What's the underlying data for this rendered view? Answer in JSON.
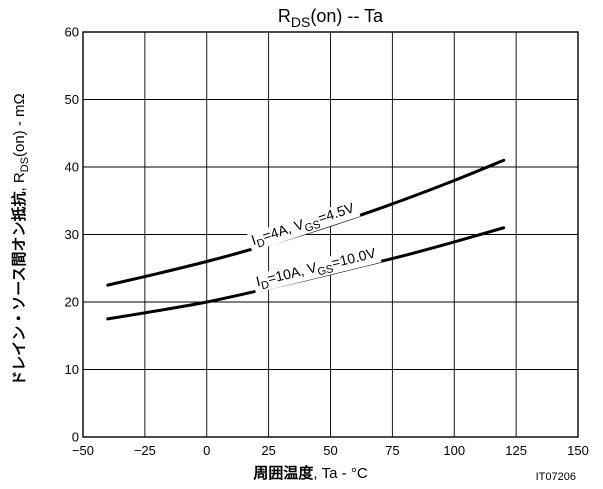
{
  "chart_data": {
    "type": "line",
    "title": {
      "main": "R",
      "sub": "DS",
      "tail": "(on)  --  Ta"
    },
    "xlabel": {
      "jp": "周囲温度",
      "rest": ", Ta  -  °C"
    },
    "ylabel": {
      "jp": "ドレイン・ソース間オン抵抗",
      "mid": ",  R",
      "sub": "DS",
      "rest": "(on)  -  mΩ"
    },
    "xlim": [
      -50,
      150
    ],
    "ylim": [
      0,
      60
    ],
    "xticks": [
      -50,
      -25,
      0,
      25,
      50,
      75,
      100,
      125,
      150
    ],
    "yticks": [
      0,
      10,
      20,
      30,
      40,
      50,
      60
    ],
    "grid": true,
    "series": [
      {
        "name": "ID=4A, VGS=4.5V",
        "label": {
          "p1": "I",
          "s1": "D",
          "p2": "=4A, V",
          "s2": "GS",
          "p3": "=4.5V"
        },
        "x": [
          -40,
          -20,
          0,
          20,
          40,
          60,
          80,
          100,
          120
        ],
        "y": [
          22.5,
          24.2,
          26.0,
          28.0,
          30.2,
          32.6,
          35.2,
          38.0,
          41.0
        ]
      },
      {
        "name": "ID=10A, VGS=10.0V",
        "label": {
          "p1": "I",
          "s1": "D",
          "p2": "=10A, V",
          "s2": "GS",
          "p3": "=10.0V"
        },
        "x": [
          -40,
          -20,
          0,
          20,
          40,
          60,
          80,
          100,
          120
        ],
        "y": [
          17.5,
          18.7,
          20.0,
          21.6,
          23.3,
          25.1,
          26.9,
          28.9,
          31.0
        ]
      }
    ],
    "code": "IT07206"
  }
}
